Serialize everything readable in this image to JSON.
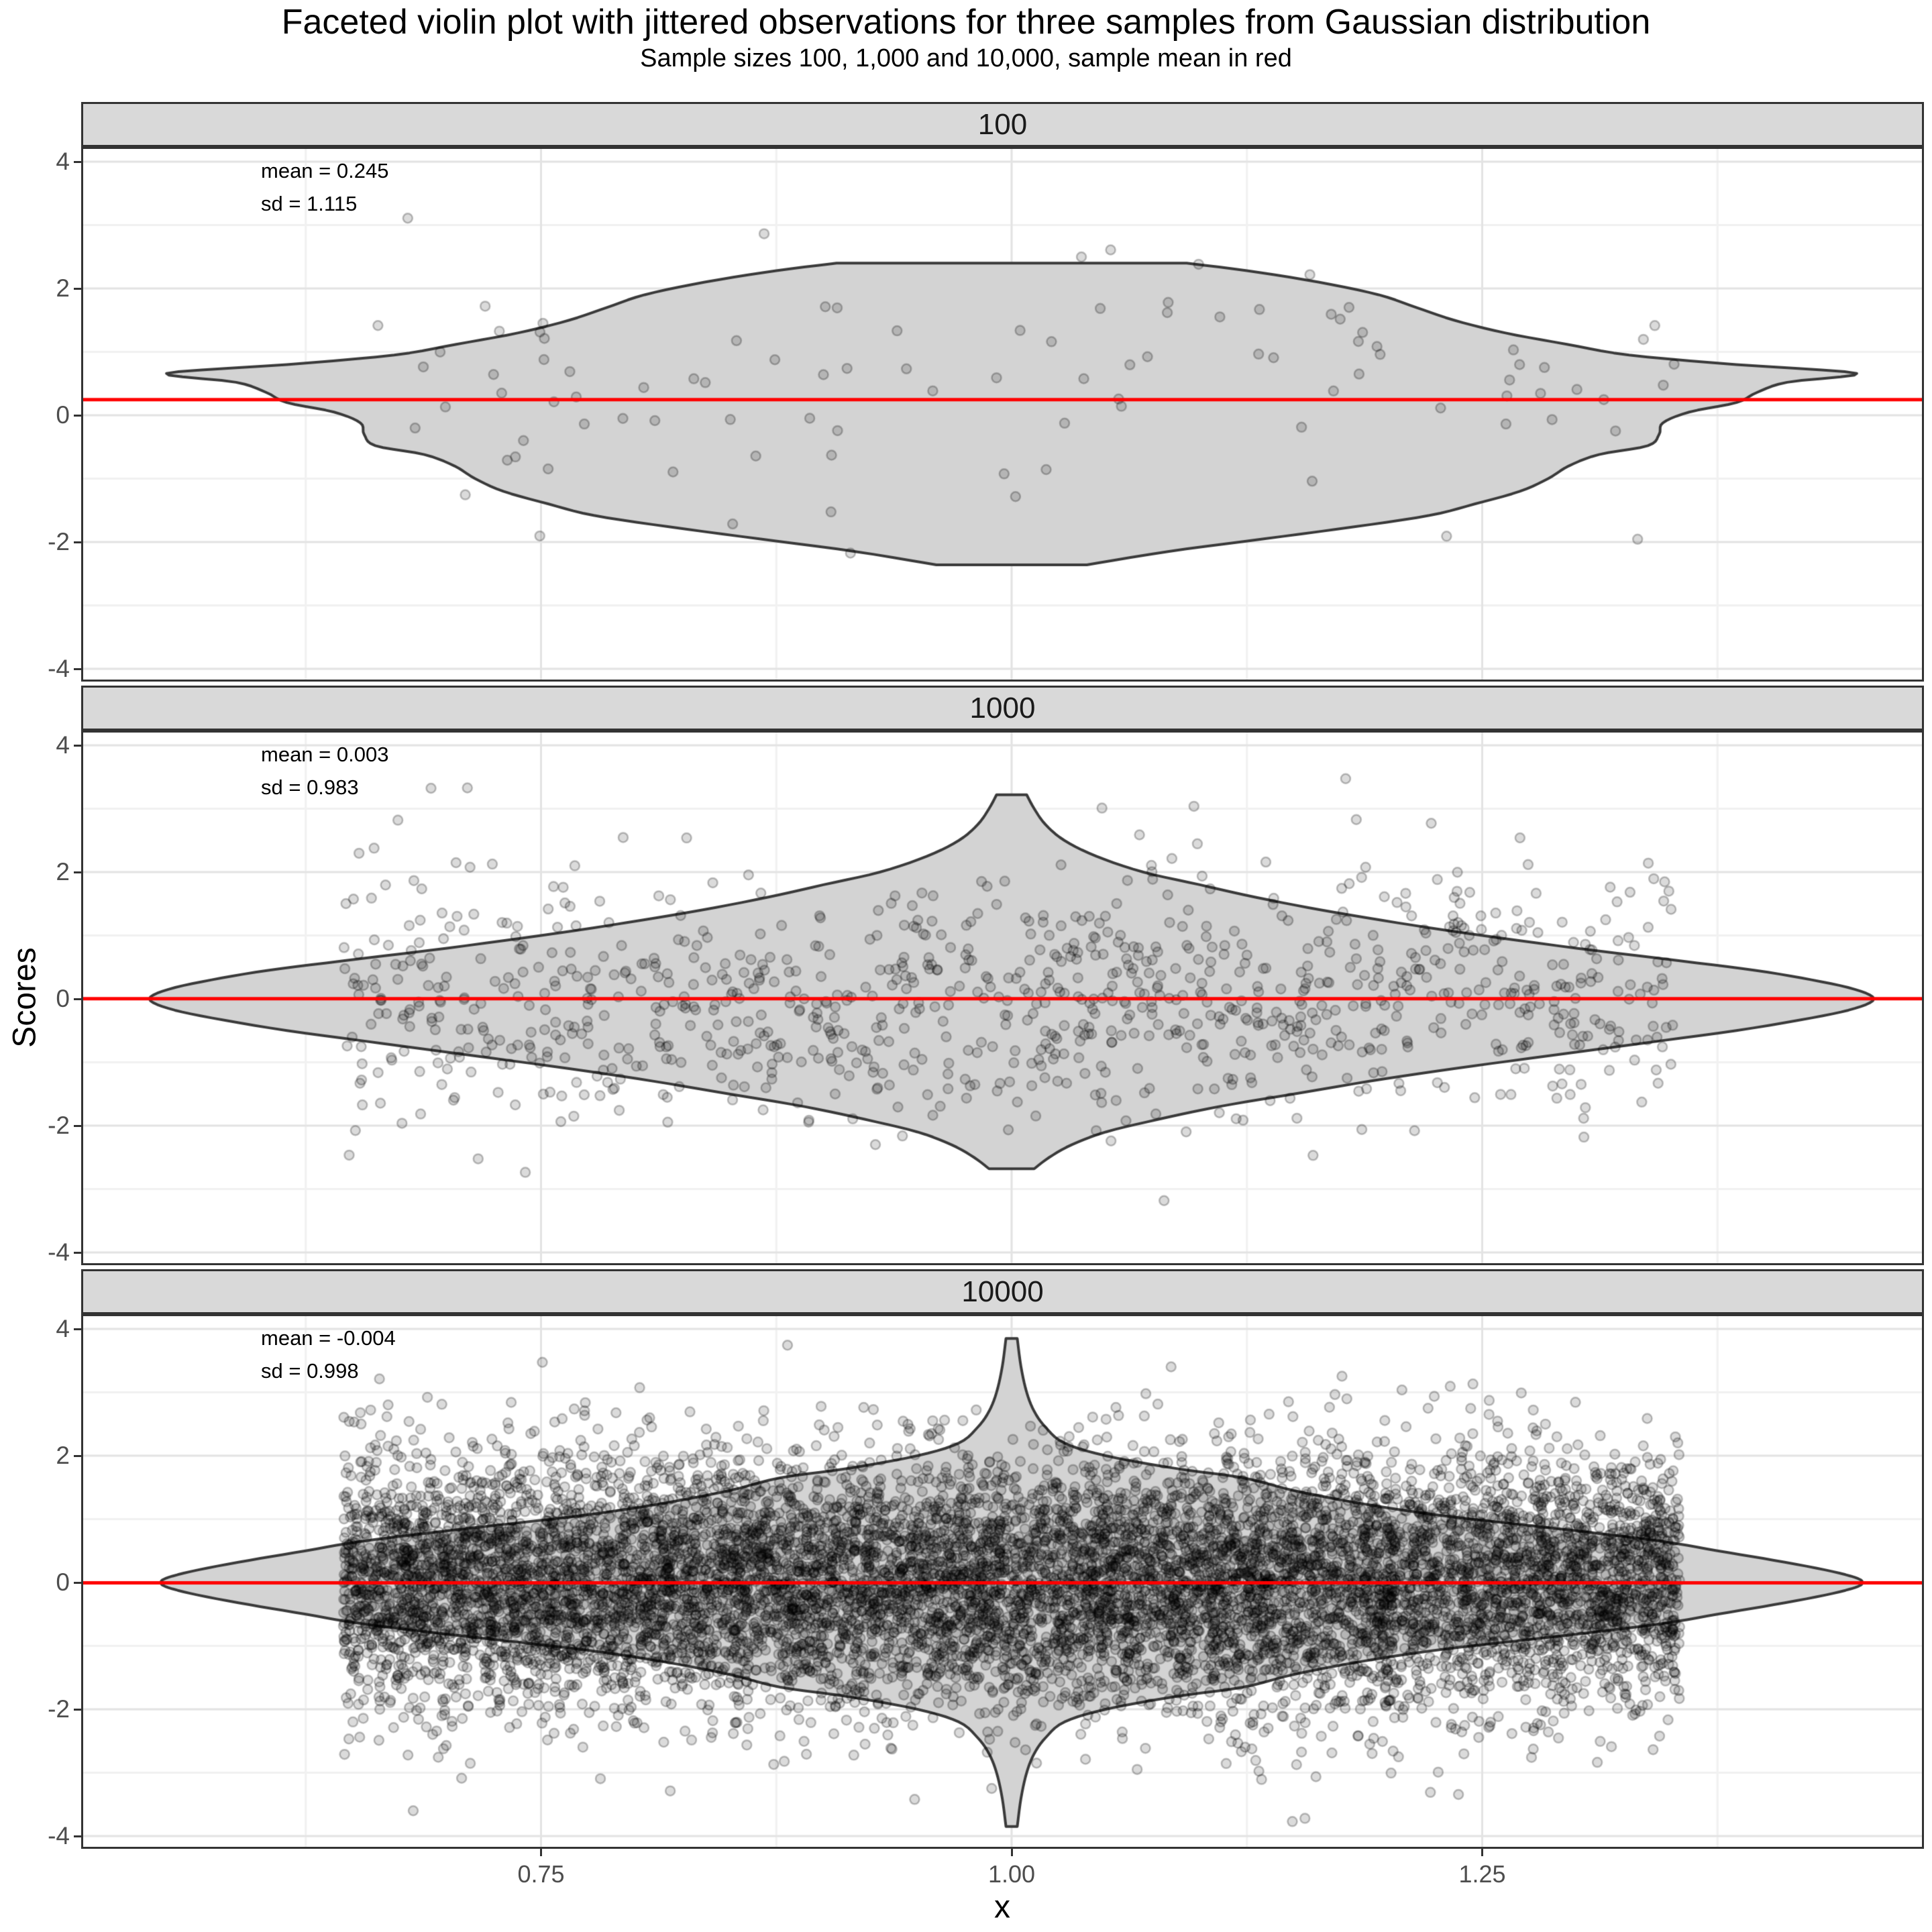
{
  "title": "Faceted violin plot with jittered observations for three samples from Gaussian distribution",
  "subtitle": "Sample sizes 100, 1,000 and 10,000, sample mean in red",
  "axes": {
    "x": {
      "label": "x",
      "tick_labels": [
        "0.75",
        "1.00",
        "1.25"
      ],
      "tick_values": [
        0.75,
        1.0,
        1.25
      ],
      "minor_values": [
        0.625,
        0.875,
        1.125,
        1.375
      ],
      "range": [
        0.5068,
        1.4836
      ]
    },
    "y": {
      "label": "Scores",
      "tick_labels": [
        "4",
        "2",
        "0",
        "-2",
        "-4"
      ],
      "tick_values": [
        4,
        2,
        0,
        -2,
        -4
      ],
      "minor_values": [
        3,
        1,
        -1,
        -3
      ],
      "range": [
        -4.2,
        4.2
      ]
    }
  },
  "style": {
    "strip_fill": "#D9D9D9",
    "strip_text_color": "#1A1A1A",
    "panel_border_color": "#333333",
    "grid_major_color": "#E3E3E3",
    "grid_minor_color": "#F1F1F1",
    "violin_fill": "#D3D3D3",
    "violin_stroke": "#3A3A3A",
    "mean_line_color": "#FF0000",
    "point_fill": "rgba(0,0,0,0.14)",
    "point_stroke": "rgba(0,0,0,0.25)",
    "tick_label_color": "#4D4D4D"
  },
  "chart_data": {
    "type": "violin",
    "title": "Faceted violin plot with jittered observations for three samples from Gaussian distribution",
    "subtitle": "Sample sizes 100, 1,000 and 10,000, sample mean in red",
    "xlabel": "x",
    "ylabel": "Scores",
    "ylim": [
      -4.2,
      4.2
    ],
    "grid": true,
    "legend": false,
    "x_center": 1.0,
    "jitter_x_range": [
      0.645,
      1.355
    ],
    "facets": [
      {
        "strip_label": "100",
        "n": 100,
        "mean": 0.245,
        "sd": 1.115,
        "annotation_lines": [
          "mean = 0.245",
          "sd = 1.115"
        ],
        "violin_profile": [
          [
            2.4,
            0.093
          ],
          [
            2.28,
            0.125
          ],
          [
            2.1,
            0.163
          ],
          [
            1.9,
            0.195
          ],
          [
            1.7,
            0.215
          ],
          [
            1.5,
            0.235
          ],
          [
            1.3,
            0.262
          ],
          [
            1.12,
            0.295
          ],
          [
            0.95,
            0.328
          ],
          [
            0.8,
            0.385
          ],
          [
            0.66,
            0.449
          ],
          [
            0.52,
            0.412
          ],
          [
            0.36,
            0.396
          ],
          [
            0.2,
            0.385
          ],
          [
            0.05,
            0.36
          ],
          [
            -0.12,
            0.346
          ],
          [
            -0.3,
            0.344
          ],
          [
            -0.48,
            0.338
          ],
          [
            -0.62,
            0.312
          ],
          [
            -0.8,
            0.296
          ],
          [
            -1.0,
            0.285
          ],
          [
            -1.2,
            0.27
          ],
          [
            -1.4,
            0.246
          ],
          [
            -1.58,
            0.222
          ],
          [
            -1.76,
            0.182
          ],
          [
            -1.95,
            0.134
          ],
          [
            -2.15,
            0.083
          ],
          [
            -2.36,
            0.04
          ]
        ]
      },
      {
        "strip_label": "1000",
        "n": 1000,
        "mean": 0.003,
        "sd": 0.983,
        "annotation_lines": [
          "mean = 0.003",
          "sd = 0.983"
        ],
        "violin_profile": [
          [
            3.22,
            0.008
          ],
          [
            3.0,
            0.012
          ],
          [
            2.75,
            0.018
          ],
          [
            2.5,
            0.028
          ],
          [
            2.25,
            0.045
          ],
          [
            2.0,
            0.07
          ],
          [
            1.8,
            0.1
          ],
          [
            1.6,
            0.13
          ],
          [
            1.4,
            0.165
          ],
          [
            1.2,
            0.205
          ],
          [
            1.0,
            0.25
          ],
          [
            0.8,
            0.3
          ],
          [
            0.6,
            0.355
          ],
          [
            0.45,
            0.395
          ],
          [
            0.3,
            0.425
          ],
          [
            0.15,
            0.448
          ],
          [
            0.0,
            0.458
          ],
          [
            -0.15,
            0.448
          ],
          [
            -0.3,
            0.425
          ],
          [
            -0.5,
            0.385
          ],
          [
            -0.7,
            0.335
          ],
          [
            -0.9,
            0.285
          ],
          [
            -1.1,
            0.235
          ],
          [
            -1.3,
            0.19
          ],
          [
            -1.5,
            0.15
          ],
          [
            -1.7,
            0.11
          ],
          [
            -1.9,
            0.078
          ],
          [
            -2.1,
            0.05
          ],
          [
            -2.3,
            0.032
          ],
          [
            -2.5,
            0.02
          ],
          [
            -2.68,
            0.012
          ]
        ]
      },
      {
        "strip_label": "10000",
        "n": 10000,
        "mean": -0.004,
        "sd": 0.998,
        "annotation_lines": [
          "mean = -0.004",
          "sd = 0.998"
        ],
        "violin_profile": [
          [
            3.85,
            0.003
          ],
          [
            3.4,
            0.005
          ],
          [
            3.0,
            0.008
          ],
          [
            2.7,
            0.012
          ],
          [
            2.45,
            0.018
          ],
          [
            2.2,
            0.028
          ],
          [
            2.0,
            0.05
          ],
          [
            1.8,
            0.087
          ],
          [
            1.65,
            0.123
          ],
          [
            1.45,
            0.15
          ],
          [
            1.25,
            0.185
          ],
          [
            1.05,
            0.23
          ],
          [
            0.85,
            0.29
          ],
          [
            0.65,
            0.345
          ],
          [
            0.5,
            0.375
          ],
          [
            0.35,
            0.405
          ],
          [
            0.2,
            0.432
          ],
          [
            0.08,
            0.448
          ],
          [
            0.0,
            0.452
          ],
          [
            -0.08,
            0.448
          ],
          [
            -0.2,
            0.432
          ],
          [
            -0.35,
            0.405
          ],
          [
            -0.5,
            0.375
          ],
          [
            -0.65,
            0.345
          ],
          [
            -0.85,
            0.29
          ],
          [
            -1.05,
            0.23
          ],
          [
            -1.25,
            0.185
          ],
          [
            -1.45,
            0.15
          ],
          [
            -1.65,
            0.123
          ],
          [
            -1.8,
            0.087
          ],
          [
            -2.0,
            0.05
          ],
          [
            -2.2,
            0.028
          ],
          [
            -2.45,
            0.018
          ],
          [
            -2.7,
            0.012
          ],
          [
            -3.0,
            0.008
          ],
          [
            -3.4,
            0.005
          ],
          [
            -3.85,
            0.003
          ]
        ]
      }
    ]
  }
}
